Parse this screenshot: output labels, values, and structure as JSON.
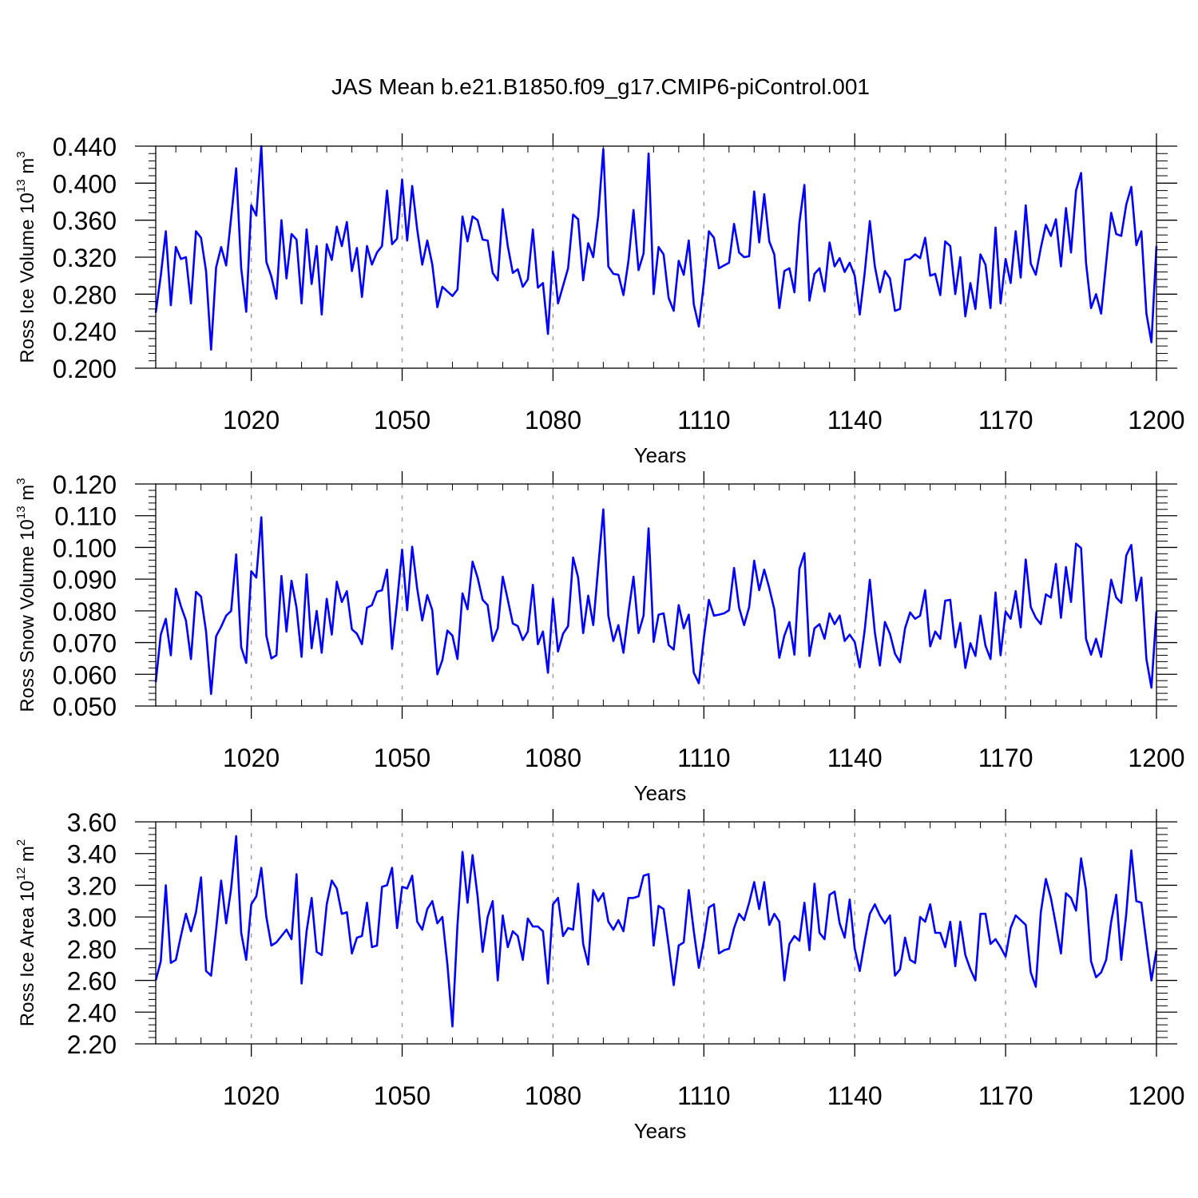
{
  "title": "JAS Mean b.e21.B1850.f09_g17.CMIP6-piControl.001",
  "colors": {
    "series": "#0000ff",
    "grid": "#a0a0a0",
    "axis": "#000000"
  },
  "chart_data": [
    {
      "type": "line",
      "title": "JAS Mean b.e21.B1850.f09_g17.CMIP6-piControl.001",
      "xlabel": "Years",
      "ylabel": {
        "prefix": "Ross Ice Volume 10",
        "exp": "13",
        "unit": " m",
        "unit_exp": "3"
      },
      "xlim": [
        1001,
        1200
      ],
      "ylim": [
        0.2,
        0.44
      ],
      "yticks": [
        0.2,
        0.24,
        0.28,
        0.32,
        0.36,
        0.4,
        0.44
      ],
      "ytick_labels": [
        "0.200",
        "0.240",
        "0.280",
        "0.320",
        "0.360",
        "0.400",
        "0.440"
      ],
      "xticks": [
        1020,
        1050,
        1080,
        1110,
        1140,
        1170,
        1200
      ],
      "xtick_labels": [
        "1020",
        "1050",
        "1080",
        "1110",
        "1140",
        "1170",
        "1200"
      ],
      "series": [
        {
          "name": "Ross Ice Volume",
          "start_year": 1001,
          "values": [
            0.26,
            0.3,
            0.348,
            0.268,
            0.331,
            0.318,
            0.32,
            0.27,
            0.348,
            0.341,
            0.305,
            0.22,
            0.309,
            0.331,
            0.311,
            0.363,
            0.416,
            0.308,
            0.261,
            0.376,
            0.365,
            0.44,
            0.315,
            0.299,
            0.275,
            0.36,
            0.297,
            0.345,
            0.339,
            0.27,
            0.35,
            0.291,
            0.332,
            0.258,
            0.334,
            0.317,
            0.353,
            0.332,
            0.358,
            0.305,
            0.33,
            0.277,
            0.332,
            0.312,
            0.325,
            0.332,
            0.392,
            0.334,
            0.34,
            0.404,
            0.338,
            0.397,
            0.35,
            0.312,
            0.338,
            0.312,
            0.266,
            0.288,
            0.283,
            0.278,
            0.285,
            0.364,
            0.337,
            0.364,
            0.36,
            0.339,
            0.338,
            0.303,
            0.295,
            0.372,
            0.332,
            0.303,
            0.307,
            0.288,
            0.296,
            0.35,
            0.287,
            0.292,
            0.237,
            0.326,
            0.27,
            0.289,
            0.308,
            0.366,
            0.361,
            0.295,
            0.335,
            0.32,
            0.365,
            0.437,
            0.31,
            0.302,
            0.301,
            0.279,
            0.316,
            0.371,
            0.306,
            0.324,
            0.432,
            0.28,
            0.331,
            0.323,
            0.276,
            0.262,
            0.316,
            0.301,
            0.338,
            0.269,
            0.245,
            0.292,
            0.348,
            0.341,
            0.308,
            0.311,
            0.314,
            0.356,
            0.325,
            0.32,
            0.321,
            0.391,
            0.336,
            0.388,
            0.337,
            0.323,
            0.265,
            0.305,
            0.308,
            0.282,
            0.357,
            0.398,
            0.273,
            0.302,
            0.308,
            0.283,
            0.336,
            0.31,
            0.319,
            0.304,
            0.314,
            0.3,
            0.258,
            0.304,
            0.359,
            0.31,
            0.282,
            0.305,
            0.297,
            0.262,
            0.264,
            0.317,
            0.318,
            0.323,
            0.319,
            0.341,
            0.3,
            0.302,
            0.279,
            0.337,
            0.332,
            0.28,
            0.32,
            0.256,
            0.292,
            0.264,
            0.323,
            0.312,
            0.265,
            0.352,
            0.27,
            0.318,
            0.292,
            0.348,
            0.298,
            0.376,
            0.313,
            0.301,
            0.33,
            0.355,
            0.343,
            0.361,
            0.31,
            0.373,
            0.325,
            0.392,
            0.411,
            0.314,
            0.265,
            0.28,
            0.259,
            0.314,
            0.368,
            0.345,
            0.343,
            0.377,
            0.396,
            0.333,
            0.348,
            0.259,
            0.228,
            0.332
          ]
        }
      ]
    },
    {
      "type": "line",
      "xlabel": "Years",
      "ylabel": {
        "prefix": "Ross Snow Volume 10",
        "exp": "13",
        "unit": " m",
        "unit_exp": "3"
      },
      "xlim": [
        1001,
        1200
      ],
      "ylim": [
        0.05,
        0.12
      ],
      "yticks": [
        0.05,
        0.06,
        0.07,
        0.08,
        0.09,
        0.1,
        0.11,
        0.12
      ],
      "ytick_labels": [
        "0.050",
        "0.060",
        "0.070",
        "0.080",
        "0.090",
        "0.100",
        "0.110",
        "0.120"
      ],
      "xticks": [
        1020,
        1050,
        1080,
        1110,
        1140,
        1170,
        1200
      ],
      "xtick_labels": [
        "1020",
        "1050",
        "1080",
        "1110",
        "1140",
        "1170",
        "1200"
      ],
      "series": [
        {
          "name": "Ross Snow Volume",
          "start_year": 1001,
          "values": [
            0.0575,
            0.0725,
            0.0775,
            0.066,
            0.087,
            0.0815,
            0.077,
            0.0648,
            0.086,
            0.0845,
            0.0735,
            0.0538,
            0.072,
            0.075,
            0.0785,
            0.08,
            0.0978,
            0.0685,
            0.0636,
            0.0925,
            0.0905,
            0.1095,
            0.0722,
            0.065,
            0.066,
            0.091,
            0.0735,
            0.0895,
            0.081,
            0.0655,
            0.0915,
            0.0682,
            0.08,
            0.0668,
            0.0838,
            0.0725,
            0.0892,
            0.0828,
            0.0862,
            0.0742,
            0.0728,
            0.0695,
            0.081,
            0.0818,
            0.086,
            0.0865,
            0.093,
            0.068,
            0.0828,
            0.0993,
            0.0802,
            0.1002,
            0.087,
            0.077,
            0.085,
            0.0802,
            0.06,
            0.0645,
            0.0738,
            0.0722,
            0.0648,
            0.0855,
            0.0805,
            0.0955,
            0.0905,
            0.0835,
            0.0818,
            0.0705,
            0.0745,
            0.0908,
            0.0835,
            0.076,
            0.0752,
            0.0708,
            0.0735,
            0.0882,
            0.0695,
            0.0735,
            0.0605,
            0.0838,
            0.0672,
            0.0728,
            0.0752,
            0.0968,
            0.0905,
            0.073,
            0.0848,
            0.0755,
            0.094,
            0.112,
            0.0785,
            0.0705,
            0.0755,
            0.0668,
            0.0795,
            0.0908,
            0.073,
            0.0785,
            0.106,
            0.0702,
            0.0788,
            0.0792,
            0.0692,
            0.0678,
            0.0818,
            0.0745,
            0.0788,
            0.0605,
            0.0572,
            0.0715,
            0.0835,
            0.0785,
            0.0788,
            0.0792,
            0.0802,
            0.0935,
            0.081,
            0.0755,
            0.0812,
            0.0958,
            0.0865,
            0.093,
            0.0872,
            0.0805,
            0.0652,
            0.0722,
            0.0765,
            0.0662,
            0.0932,
            0.0982,
            0.0658,
            0.0745,
            0.0758,
            0.0712,
            0.0792,
            0.0758,
            0.0785,
            0.0705,
            0.0725,
            0.0702,
            0.0622,
            0.0742,
            0.0898,
            0.0732,
            0.0628,
            0.0765,
            0.0728,
            0.0665,
            0.0638,
            0.0745,
            0.0795,
            0.0775,
            0.0785,
            0.0865,
            0.0688,
            0.0735,
            0.0712,
            0.0832,
            0.0835,
            0.0685,
            0.0762,
            0.062,
            0.0698,
            0.0658,
            0.0785,
            0.069,
            0.0648,
            0.0858,
            0.066,
            0.0798,
            0.0775,
            0.0862,
            0.0748,
            0.0962,
            0.0812,
            0.0778,
            0.0758,
            0.0852,
            0.0842,
            0.0948,
            0.0778,
            0.0938,
            0.0828,
            0.1012,
            0.0998,
            0.0712,
            0.0662,
            0.0712,
            0.0655,
            0.0775,
            0.0898,
            0.0842,
            0.0825,
            0.0975,
            0.1008,
            0.0832,
            0.0905,
            0.0648,
            0.0558,
            0.0798
          ]
        }
      ]
    },
    {
      "type": "line",
      "xlabel": "Years",
      "ylabel": {
        "prefix": "Ross Ice Area 10",
        "exp": "12",
        "unit": " m",
        "unit_exp": "2"
      },
      "xlim": [
        1001,
        1200
      ],
      "ylim": [
        2.2,
        3.6
      ],
      "yticks": [
        2.2,
        2.4,
        2.6,
        2.8,
        3.0,
        3.2,
        3.4,
        3.6
      ],
      "ytick_labels": [
        "2.20",
        "2.40",
        "2.60",
        "2.80",
        "3.00",
        "3.20",
        "3.40",
        "3.60"
      ],
      "xticks": [
        1020,
        1050,
        1080,
        1110,
        1140,
        1170,
        1200
      ],
      "xtick_labels": [
        "1020",
        "1050",
        "1080",
        "1110",
        "1140",
        "1170",
        "1200"
      ],
      "series": [
        {
          "name": "Ross Ice Area",
          "start_year": 1001,
          "values": [
            2.6,
            2.72,
            3.2,
            2.71,
            2.73,
            2.88,
            3.02,
            2.91,
            3.03,
            3.25,
            2.66,
            2.63,
            2.92,
            3.23,
            2.96,
            3.18,
            3.51,
            2.9,
            2.73,
            3.08,
            3.13,
            3.31,
            3.0,
            2.82,
            2.84,
            2.88,
            2.92,
            2.86,
            3.27,
            2.58,
            2.91,
            3.12,
            2.78,
            2.76,
            3.08,
            3.23,
            3.18,
            3.02,
            3.03,
            2.77,
            2.87,
            2.88,
            3.09,
            2.81,
            2.82,
            3.19,
            3.2,
            3.31,
            2.93,
            3.19,
            3.18,
            3.26,
            2.97,
            2.92,
            3.05,
            3.1,
            2.96,
            3.0,
            2.7,
            2.31,
            2.95,
            3.41,
            3.09,
            3.39,
            3.13,
            2.78,
            3.0,
            3.1,
            2.6,
            3.01,
            2.81,
            2.91,
            2.88,
            2.73,
            2.99,
            2.94,
            2.94,
            2.91,
            2.58,
            3.08,
            3.12,
            2.88,
            2.93,
            2.92,
            3.21,
            2.83,
            2.7,
            3.17,
            3.1,
            3.15,
            2.97,
            2.92,
            2.98,
            2.91,
            3.12,
            3.12,
            3.13,
            3.26,
            3.27,
            2.82,
            3.07,
            3.05,
            2.82,
            2.57,
            2.82,
            2.84,
            3.17,
            2.91,
            2.68,
            2.85,
            3.06,
            3.08,
            2.77,
            2.79,
            2.8,
            2.93,
            3.02,
            2.98,
            3.09,
            3.22,
            3.05,
            3.22,
            2.95,
            3.02,
            2.97,
            2.6,
            2.83,
            2.88,
            2.85,
            3.09,
            2.79,
            3.21,
            2.9,
            2.86,
            3.14,
            3.16,
            2.96,
            2.87,
            3.11,
            2.8,
            2.66,
            2.85,
            3.02,
            3.08,
            3.01,
            2.96,
            3.01,
            2.63,
            2.67,
            2.87,
            2.73,
            2.71,
            3.0,
            2.97,
            3.08,
            2.9,
            2.9,
            2.81,
            2.97,
            2.69,
            2.97,
            2.76,
            2.67,
            2.6,
            3.02,
            3.02,
            2.83,
            2.86,
            2.81,
            2.75,
            2.93,
            3.01,
            2.98,
            2.95,
            2.65,
            2.56,
            3.03,
            3.24,
            3.12,
            2.95,
            2.77,
            3.15,
            3.12,
            3.04,
            3.37,
            3.17,
            2.72,
            2.62,
            2.65,
            2.73,
            2.97,
            3.14,
            2.73,
            3.02,
            3.42,
            3.1,
            3.09,
            2.84,
            2.6,
            2.79
          ]
        }
      ]
    }
  ]
}
